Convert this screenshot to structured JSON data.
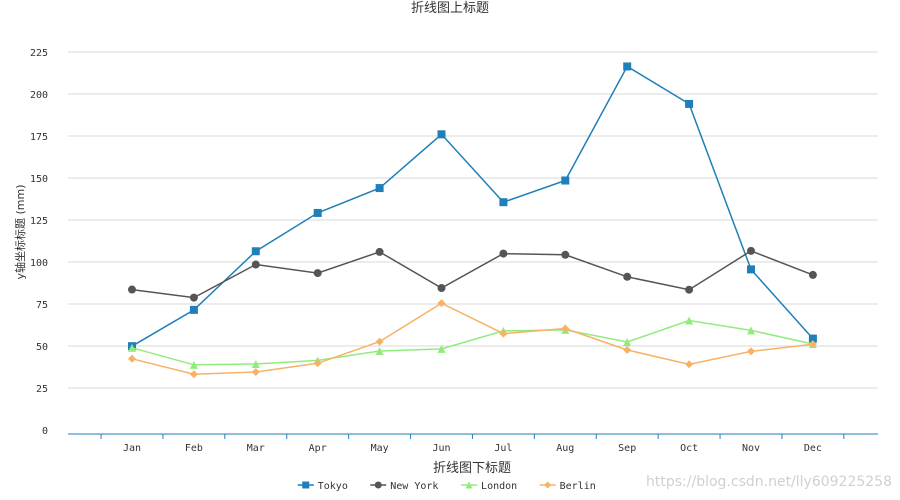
{
  "chart_data": {
    "type": "line",
    "title": "折线图上标题",
    "subtitle": "折线图下标题",
    "ylabel": "y轴坐标标题 (mm)",
    "ylim": [
      0,
      225
    ],
    "yticks": [
      0,
      25,
      50,
      75,
      100,
      125,
      150,
      175,
      200,
      225
    ],
    "categories": [
      "Jan",
      "Feb",
      "Mar",
      "Apr",
      "May",
      "Jun",
      "Jul",
      "Aug",
      "Sep",
      "Oct",
      "Nov",
      "Dec"
    ],
    "grid": true,
    "legend_position": "bottom-center",
    "series": [
      {
        "name": "Tokyo",
        "color": "#1f7fb8",
        "marker": "square",
        "values": [
          49.9,
          71.5,
          106.4,
          129.2,
          144.0,
          176.0,
          135.6,
          148.5,
          216.4,
          194.1,
          95.6,
          54.4
        ]
      },
      {
        "name": "New York",
        "color": "#555555",
        "marker": "circle",
        "values": [
          83.6,
          78.8,
          98.5,
          93.4,
          106.0,
          84.5,
          105.0,
          104.3,
          91.2,
          83.5,
          106.6,
          92.3
        ]
      },
      {
        "name": "London",
        "color": "#90ed7d",
        "marker": "triangle",
        "values": [
          48.9,
          38.8,
          39.3,
          41.4,
          47.0,
          48.3,
          59.0,
          59.6,
          52.4,
          65.2,
          59.3,
          51.2
        ]
      },
      {
        "name": "Berlin",
        "color": "#f7b266",
        "marker": "diamond",
        "values": [
          42.4,
          33.2,
          34.5,
          39.7,
          52.6,
          75.5,
          57.4,
          60.4,
          47.6,
          39.1,
          46.8,
          51.1
        ]
      }
    ]
  },
  "watermark": "https://blog.csdn.net/lly609225258"
}
